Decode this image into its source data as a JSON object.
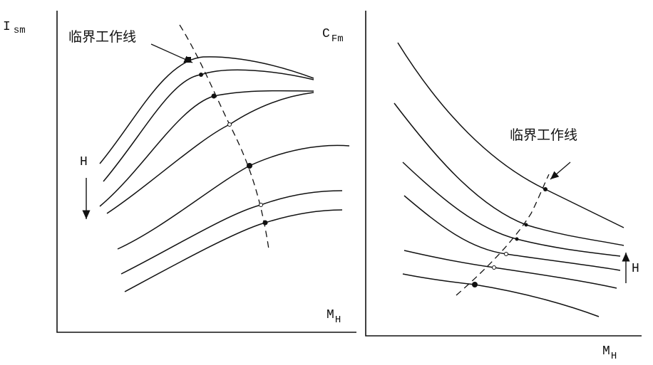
{
  "left_plot": {
    "y_label": {
      "symbol": "I",
      "subscript": "sm"
    },
    "x_label": {
      "symbol": "M",
      "subscript": "H"
    },
    "annotation": "临界工作线",
    "parameter": "H"
  },
  "right_plot": {
    "y_label": {
      "symbol": "C",
      "subscript": "Fm"
    },
    "x_label": {
      "symbol": "M",
      "subscript": "H"
    },
    "annotation": "临界工作线",
    "parameter": "H"
  }
}
